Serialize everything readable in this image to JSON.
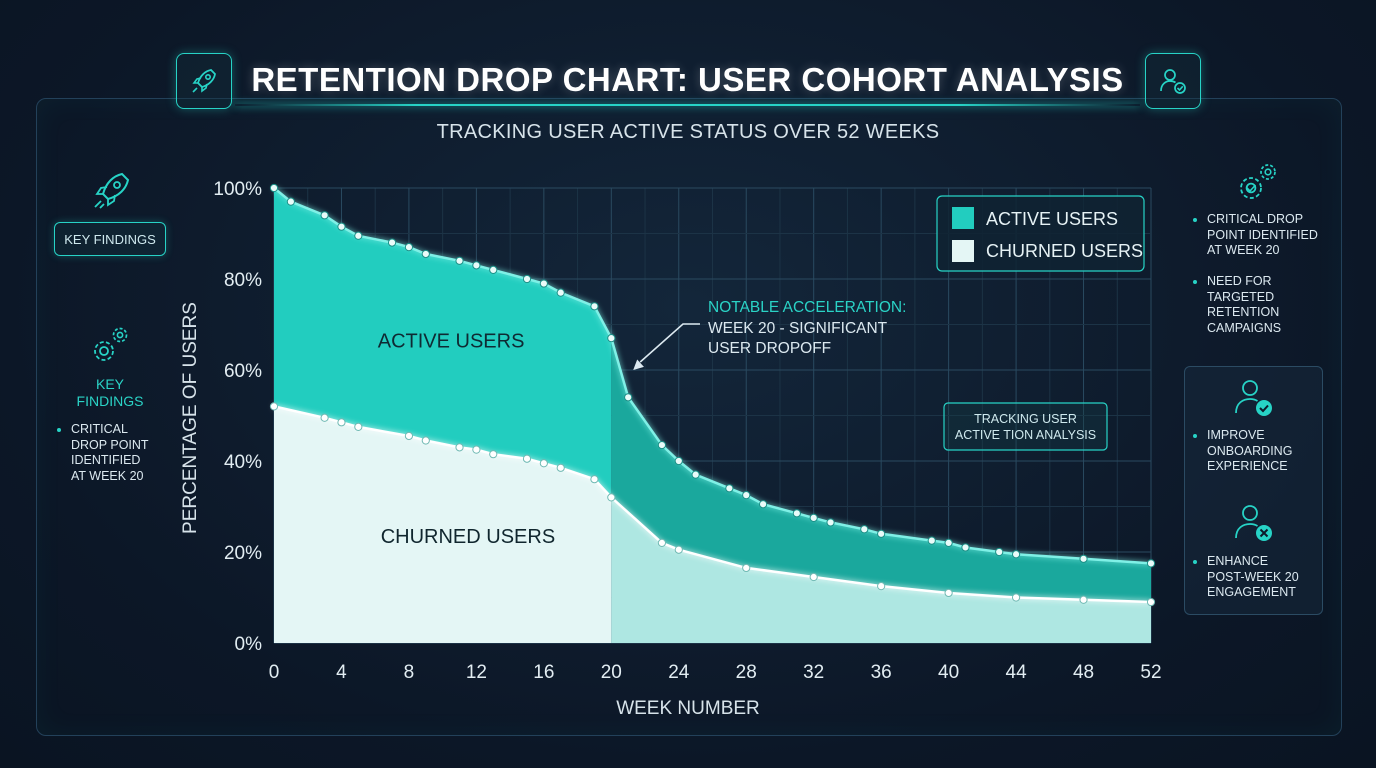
{
  "title": "RETENTION DROP CHART: USER COHORT ANALYSIS",
  "subtitle": "TRACKING USER ACTIVE STATUS OVER 52 WEEKS",
  "left_panel": {
    "pill_label": "KEY FINDINGS",
    "section_label_line1": "KEY",
    "section_label_line2": "FINDINGS",
    "bullet_lines": [
      "CRITICAL",
      "DROP POINT",
      "IDENTIFIED",
      "AT WEEK 20"
    ]
  },
  "right_panel": {
    "bullets": [
      {
        "lines": [
          "CRITICAL DROP",
          "POINT IDENTIFIED",
          "AT WEEK 20"
        ]
      },
      {
        "lines": [
          "NEED FOR",
          "TARGETED",
          "RETENTION",
          "CAMPAIGNS"
        ]
      }
    ],
    "box_bullets": [
      {
        "lines": [
          "IMPROVE",
          "ONBOARDING",
          "EXPERIENCE"
        ]
      },
      {
        "lines": [
          "ENHANCE",
          "POST-WEEK 20",
          "ENGAGEMENT"
        ]
      }
    ]
  },
  "colors": {
    "accent": "#27d3c6",
    "active_fill": "#22cdbf",
    "active_fill_after": "#1aa89d",
    "churned_fill": "#e4f6f5",
    "churned_fill_after": "#aee7e2",
    "background": "#0d1a2b"
  },
  "icons": {
    "title_left": "rocket-icon",
    "title_right": "user-check-icon",
    "left_top": "rocket-icon",
    "left_mid": "gears-icon",
    "right_top": "gears-icon",
    "right_box_1": "user-check-icon",
    "right_box_2": "user-x-icon"
  },
  "chart_data": {
    "type": "area",
    "xlabel": "WEEK NUMBER",
    "ylabel": "PERCENTAGE OF USERS",
    "xlim": [
      0,
      52
    ],
    "ylim": [
      0,
      100
    ],
    "x_ticks": [
      0,
      4,
      8,
      12,
      16,
      20,
      24,
      28,
      32,
      36,
      40,
      44,
      48,
      52
    ],
    "y_ticks": [
      0,
      20,
      40,
      60,
      80,
      100
    ],
    "y_tick_labels": [
      "0%",
      "20%",
      "40%",
      "60%",
      "80%",
      "100%"
    ],
    "grid": true,
    "legend": {
      "placement": "top-right",
      "entries": [
        {
          "label": "ACTIVE USERS",
          "color": "#22cdbf"
        },
        {
          "label": "CHURNED USERS",
          "color": "#e4f6f5"
        }
      ]
    },
    "series": [
      {
        "name": "ACTIVE USERS",
        "x": [
          0,
          1,
          3,
          4,
          5,
          7,
          8,
          9,
          11,
          12,
          13,
          15,
          16,
          17,
          19,
          20,
          21,
          23,
          24,
          25,
          27,
          28,
          29,
          31,
          32,
          33,
          35,
          36,
          39,
          40,
          41,
          43,
          44,
          48,
          52
        ],
        "y": [
          100,
          97,
          94,
          91.5,
          89.5,
          88,
          87,
          85.5,
          84,
          83,
          82,
          80,
          79,
          77,
          74,
          67,
          54,
          43.5,
          40,
          37,
          34,
          32.5,
          30.5,
          28.5,
          27.5,
          26.5,
          25,
          24,
          22.5,
          22,
          21,
          20,
          19.5,
          18.5,
          17.5
        ]
      },
      {
        "name": "CHURNED USERS",
        "x": [
          0,
          3,
          4,
          5,
          8,
          9,
          11,
          12,
          13,
          15,
          16,
          17,
          19,
          20,
          23,
          24,
          28,
          32,
          36,
          40,
          44,
          48,
          52
        ],
        "y": [
          52,
          49.5,
          48.5,
          47.5,
          45.5,
          44.5,
          43,
          42.5,
          41.5,
          40.5,
          39.5,
          38.5,
          36,
          32,
          22,
          20.5,
          16.5,
          14.5,
          12.5,
          11,
          10,
          9.5,
          9
        ]
      }
    ],
    "area_labels": [
      {
        "text": "ACTIVE USERS",
        "x": 10.5,
        "y": 65
      },
      {
        "text": "CHURNED USERS",
        "x": 11.5,
        "y": 22
      }
    ],
    "annotations": [
      {
        "lines": [
          "NOTABLE ACCELERATION:",
          "WEEK 20 - SIGNIFICANT",
          "USER DROPOFF"
        ],
        "target_x": 21.3,
        "target_y": 60
      },
      {
        "lines": [
          "TRACKING USER",
          "ACTIVE TION ANALYSIS"
        ]
      }
    ]
  }
}
